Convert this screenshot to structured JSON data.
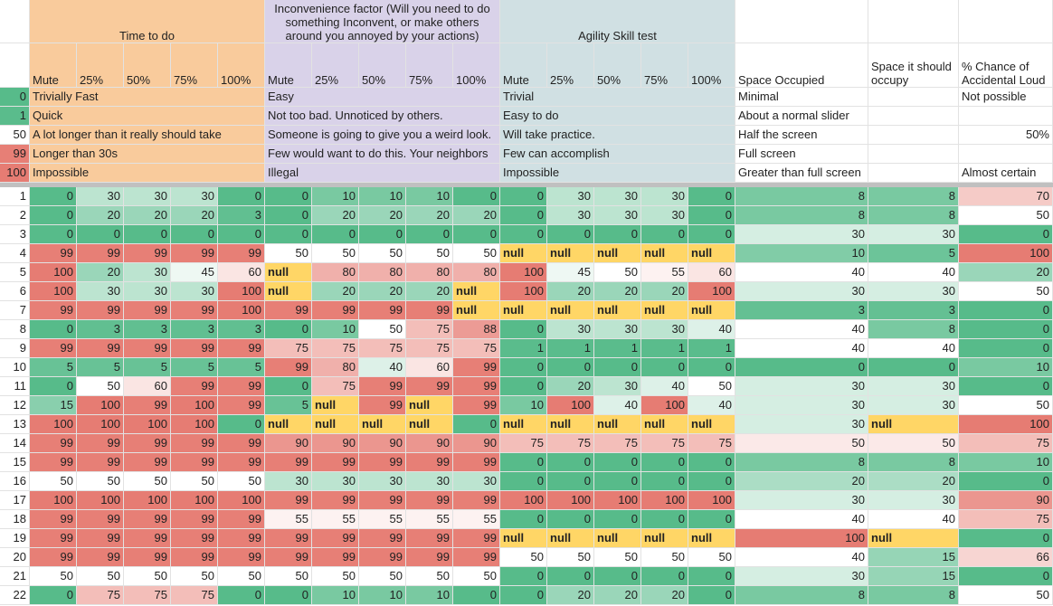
{
  "header": {
    "groups": [
      "Time to do",
      "Inconvenience factor (Will you need to do something Inconvent, or make others around you annoyed by your actions)",
      "Agility Skill test"
    ],
    "subheaders": [
      "Mute",
      "25%",
      "50%",
      "75%",
      "100%"
    ],
    "space_occupied": "Space Occupied",
    "space_should": "Space it should occupy",
    "chance": "% Chance of Accidental Loud"
  },
  "colors": {
    "time": "#f9cb9c",
    "inconvenience": "#d9d2e9",
    "agility": "#d0e0e3",
    "low": "#57bb8a",
    "mid": "#ffffff",
    "high": "#e67c73",
    "null": "#ffd666"
  },
  "scales": {
    "default": [
      0,
      50,
      100
    ],
    "space": [
      0,
      40,
      100
    ]
  },
  "legend_rows": [
    {
      "key": 0,
      "time": "Trivially Fast",
      "inconvenience": "Easy",
      "agility": "Trivial",
      "space": "Minimal",
      "chance": "Not possible"
    },
    {
      "key": 1,
      "time": "Quick",
      "inconvenience": "Not too bad. Unnoticed by others.",
      "agility": "Easy to do",
      "space": "About a normal slider"
    },
    {
      "key": 50,
      "time": "A lot longer than it really should take",
      "inconvenience": "Someone is going to give you a weird look.",
      "agility": "Will take practice.",
      "space": "Half the screen",
      "chance": "50%"
    },
    {
      "key": 99,
      "time": "Longer than 30s",
      "inconvenience": "Few would want to do this. Your neighbors",
      "agility": "Few can accomplish",
      "space": "Full screen"
    },
    {
      "key": 100,
      "time": "Impossible",
      "inconvenience": "Illegal",
      "agility": "Impossible",
      "space": "Greater than full screen",
      "chance": "Almost certain"
    }
  ],
  "rows": [
    {
      "label": 1,
      "cells": [
        0,
        30,
        30,
        30,
        0,
        0,
        10,
        10,
        10,
        0,
        0,
        30,
        30,
        30,
        0,
        8,
        8,
        70
      ]
    },
    {
      "label": 2,
      "cells": [
        0,
        20,
        20,
        20,
        3,
        0,
        20,
        20,
        20,
        20,
        0,
        30,
        30,
        30,
        0,
        8,
        8,
        50
      ]
    },
    {
      "label": 3,
      "cells": [
        0,
        0,
        0,
        0,
        0,
        0,
        0,
        0,
        0,
        0,
        0,
        0,
        0,
        0,
        0,
        30,
        30,
        0
      ]
    },
    {
      "label": 4,
      "cells": [
        99,
        99,
        99,
        99,
        99,
        50,
        50,
        50,
        50,
        50,
        "null",
        "null",
        "null",
        "null",
        "null",
        10,
        5,
        100
      ]
    },
    {
      "label": 5,
      "cells": [
        100,
        20,
        30,
        45,
        60,
        "null",
        80,
        80,
        80,
        80,
        100,
        45,
        50,
        55,
        60,
        40,
        40,
        20
      ]
    },
    {
      "label": 6,
      "cells": [
        100,
        30,
        30,
        30,
        100,
        "null",
        20,
        20,
        20,
        "null",
        100,
        20,
        20,
        20,
        100,
        30,
        30,
        50
      ]
    },
    {
      "label": 7,
      "cells": [
        99,
        99,
        99,
        99,
        100,
        99,
        99,
        99,
        99,
        "null",
        "null",
        "null",
        "null",
        "null",
        "null",
        3,
        3,
        0
      ]
    },
    {
      "label": 8,
      "cells": [
        0,
        3,
        3,
        3,
        3,
        0,
        10,
        50,
        75,
        88,
        0,
        30,
        30,
        30,
        40,
        40,
        8,
        0
      ]
    },
    {
      "label": 9,
      "cells": [
        99,
        99,
        99,
        99,
        99,
        75,
        75,
        75,
        75,
        75,
        1,
        1,
        1,
        1,
        1,
        40,
        40,
        0
      ]
    },
    {
      "label": 10,
      "cells": [
        5,
        5,
        5,
        5,
        5,
        99,
        80,
        40,
        60,
        99,
        0,
        0,
        0,
        0,
        0,
        0,
        0,
        10
      ]
    },
    {
      "label": 11,
      "cells": [
        0,
        50,
        60,
        99,
        99,
        0,
        75,
        99,
        99,
        99,
        0,
        20,
        30,
        40,
        50,
        30,
        30,
        0
      ]
    },
    {
      "label": 12,
      "cells": [
        15,
        100,
        99,
        100,
        99,
        5,
        "null",
        99,
        "null",
        99,
        10,
        100,
        40,
        100,
        40,
        30,
        30,
        50
      ]
    },
    {
      "label": 13,
      "cells": [
        100,
        100,
        100,
        100,
        0,
        "null",
        "null",
        "null",
        "null",
        0,
        "null",
        "null",
        "null",
        "null",
        "null",
        30,
        "null",
        100
      ]
    },
    {
      "label": 14,
      "cells": [
        99,
        99,
        99,
        99,
        99,
        90,
        90,
        90,
        90,
        90,
        75,
        75,
        75,
        75,
        75,
        50,
        50,
        75
      ]
    },
    {
      "label": 15,
      "cells": [
        99,
        99,
        99,
        99,
        99,
        99,
        99,
        99,
        99,
        99,
        0,
        0,
        0,
        0,
        0,
        8,
        8,
        10
      ]
    },
    {
      "label": 16,
      "cells": [
        50,
        50,
        50,
        50,
        50,
        30,
        30,
        30,
        30,
        30,
        0,
        0,
        0,
        0,
        0,
        20,
        20,
        0
      ]
    },
    {
      "label": 17,
      "cells": [
        100,
        100,
        100,
        100,
        100,
        99,
        99,
        99,
        99,
        99,
        100,
        100,
        100,
        100,
        100,
        30,
        30,
        90
      ]
    },
    {
      "label": 18,
      "cells": [
        99,
        99,
        99,
        99,
        99,
        55,
        55,
        55,
        55,
        55,
        0,
        0,
        0,
        0,
        0,
        40,
        40,
        75
      ]
    },
    {
      "label": 19,
      "cells": [
        99,
        99,
        99,
        99,
        99,
        99,
        99,
        99,
        99,
        99,
        "null",
        "null",
        "null",
        "null",
        "null",
        100,
        "null",
        0
      ]
    },
    {
      "label": 20,
      "cells": [
        99,
        99,
        99,
        99,
        99,
        99,
        99,
        99,
        99,
        99,
        50,
        50,
        50,
        50,
        50,
        40,
        15,
        66
      ]
    },
    {
      "label": 21,
      "cells": [
        50,
        50,
        50,
        50,
        50,
        50,
        50,
        50,
        50,
        50,
        0,
        0,
        0,
        0,
        0,
        30,
        15,
        0
      ]
    },
    {
      "label": 22,
      "cells": [
        0,
        75,
        75,
        75,
        0,
        0,
        10,
        10,
        10,
        0,
        0,
        20,
        20,
        20,
        0,
        8,
        8,
        50
      ]
    }
  ]
}
